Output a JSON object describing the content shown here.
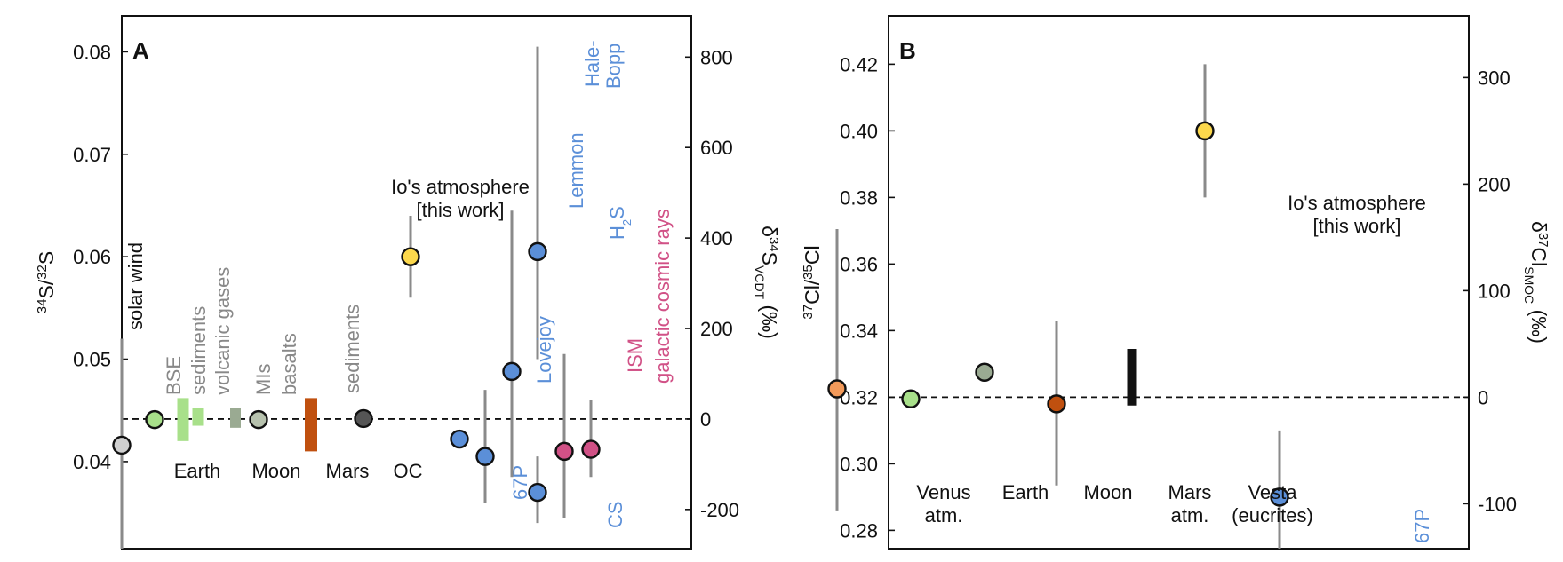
{
  "chart_data": [
    {
      "type": "scatter",
      "panel_label": "A",
      "ylabel": "34S/32S",
      "ylabel_right": "δ34SVCDT (‰)",
      "ylim": [
        0.0315,
        0.0835
      ],
      "yticks": [
        0.04,
        0.05,
        0.06,
        0.07,
        0.08
      ],
      "ytick_labels": [
        "0.04",
        "0.05",
        "0.06",
        "0.07",
        "0.08"
      ],
      "y2ticks": [
        -200,
        0,
        200,
        400,
        600,
        800
      ],
      "y2tick_labels": [
        "-200",
        "0",
        "200",
        "400",
        "600",
        "800"
      ],
      "reference_value": 0.04416,
      "group_labels": [
        "Earth",
        "Moon",
        "Mars",
        "OC"
      ],
      "points": [
        {
          "label": "solar wind",
          "value": 0.0416,
          "range": [
            0.0315,
            0.052
          ],
          "color": "#cfcfcf",
          "label_color": "#111111",
          "shape": "circle"
        },
        {
          "label": "BSE",
          "value": 0.0441,
          "color": "#a8e08a",
          "label_color": "#888888",
          "shape": "circle"
        },
        {
          "label": "sediments",
          "range": [
            0.042,
            0.0462
          ],
          "color": "#a8e08a",
          "label_color": "#888888",
          "shape": "bar"
        },
        {
          "label": "volcanic gases",
          "range": [
            0.0435,
            0.0452
          ],
          "color": "#a8e08a",
          "label_color": "#888888",
          "shape": "bar"
        },
        {
          "label": "MIs",
          "range": [
            0.0433,
            0.0452
          ],
          "color": "#9aaa92",
          "label_color": "#888888",
          "shape": "bar"
        },
        {
          "label": "basalts",
          "value": 0.0441,
          "color": "#b7c2ae",
          "label_color": "#888888",
          "shape": "circle"
        },
        {
          "label": "sediments",
          "range": [
            0.041,
            0.0462
          ],
          "color": "#c0500f",
          "label_color": "#888888",
          "shape": "bar"
        },
        {
          "label": "",
          "value": 0.0442,
          "color": "#555555",
          "label_color": "#111111",
          "shape": "circle"
        },
        {
          "label": "Io's atmosphere",
          "label2": "[this work]",
          "value": 0.06,
          "range": [
            0.056,
            0.064
          ],
          "color": "#fcd84c",
          "label_color": "#111111",
          "shape": "circle"
        },
        {
          "label": "67P",
          "value": 0.0422,
          "color": "#5b8fd8",
          "label_color": "#5b8fd8",
          "shape": "circle"
        },
        {
          "label": "Lovejoy",
          "value": 0.0405,
          "range": [
            0.036,
            0.047
          ],
          "color": "#5b8fd8",
          "label_color": "#5b8fd8",
          "shape": "circle"
        },
        {
          "label": "Lemmon",
          "value": 0.0488,
          "range": [
            0.0385,
            0.0645
          ],
          "color": "#5b8fd8",
          "label_color": "#5b8fd8",
          "shape": "circle"
        },
        {
          "label": "Hale-Bopp",
          "label_line1": "Hale-",
          "label_line2": "Bopp",
          "sublabel": "H2S",
          "value": 0.0605,
          "range": [
            0.05,
            0.0805
          ],
          "color": "#5b8fd8",
          "label_color": "#5b8fd8",
          "shape": "circle"
        },
        {
          "label": "CS",
          "value": 0.037,
          "range": [
            0.034,
            0.0405
          ],
          "color": "#5b8fd8",
          "label_color": "#5b8fd8",
          "shape": "circle"
        },
        {
          "label": "ISM",
          "value": 0.041,
          "range": [
            0.0345,
            0.0505
          ],
          "color": "#d15186",
          "label_color": "#d15186",
          "shape": "circle"
        },
        {
          "label": "galactic cosmic rays",
          "value": 0.0412,
          "range": [
            0.0385,
            0.046
          ],
          "color": "#d15186",
          "label_color": "#d15186",
          "shape": "circle"
        }
      ]
    },
    {
      "type": "scatter",
      "panel_label": "B",
      "ylabel": "37Cl/35Cl",
      "ylabel_right": "δ37ClSMOC (‰)",
      "ylim": [
        0.2745,
        0.4345
      ],
      "yticks": [
        0.28,
        0.3,
        0.32,
        0.34,
        0.36,
        0.38,
        0.4,
        0.42
      ],
      "ytick_labels": [
        "0.28",
        "0.30",
        "0.32",
        "0.34",
        "0.36",
        "0.38",
        "0.40",
        "0.42"
      ],
      "y2ticks": [
        -100,
        0,
        100,
        200,
        300
      ],
      "y2tick_labels": [
        "-100",
        "0",
        "100",
        "200",
        "300"
      ],
      "reference_value": 0.32,
      "points": [
        {
          "label": "Venus",
          "label2": "atm.",
          "value": 0.3225,
          "range": [
            0.286,
            0.3705
          ],
          "color": "#f39a5a",
          "label_color": "#111111",
          "shape": "circle"
        },
        {
          "label": "Earth",
          "value": 0.3195,
          "color": "#a8e08a",
          "label_color": "#111111",
          "shape": "circle"
        },
        {
          "label": "Moon",
          "value": 0.3275,
          "color": "#9aaa92",
          "label_color": "#111111",
          "shape": "circle"
        },
        {
          "label": "Mars",
          "label2": "atm.",
          "value": 0.318,
          "range": [
            0.2935,
            0.343
          ],
          "color": "#c0500f",
          "label_color": "#111111",
          "shape": "circle"
        },
        {
          "label": "Vesta",
          "label2": "(eucrites)",
          "range": [
            0.3175,
            0.3345
          ],
          "color": "#111111",
          "label_color": "#111111",
          "shape": "bar"
        },
        {
          "label": "Io's atmosphere",
          "label2": "[this work]",
          "value": 0.4,
          "range": [
            0.38,
            0.42
          ],
          "color": "#fcd84c",
          "label_color": "#111111",
          "shape": "circle"
        },
        {
          "label": "67P",
          "value": 0.29,
          "range": [
            0.27,
            0.31
          ],
          "color": "#5b8fd8",
          "label_color": "#5b8fd8",
          "shape": "circle"
        }
      ]
    }
  ]
}
